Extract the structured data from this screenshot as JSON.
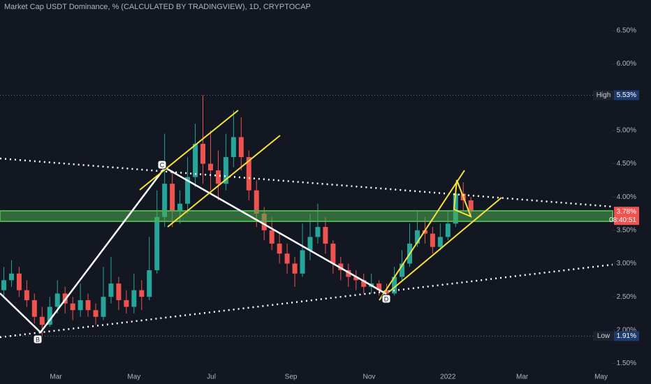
{
  "chart_data": {
    "type": "candlestick",
    "title": "Market Cap USDT Dominance, % (CALCULATED BY TRADINGVIEW), 1D, CRYPTOCAP",
    "xlim": [
      -0.5,
      79.5
    ],
    "xticks": [
      {
        "value": 6.8,
        "label": "Mar"
      },
      {
        "value": 17.0,
        "label": "May"
      },
      {
        "value": 27.1,
        "label": "Jul"
      },
      {
        "value": 37.5,
        "label": "Sep"
      },
      {
        "value": 47.7,
        "label": "Nov"
      },
      {
        "value": 58.0,
        "label": "2022"
      },
      {
        "value": 67.7,
        "label": "Mar"
      },
      {
        "value": 78.0,
        "label": "May"
      }
    ],
    "ylim": [
      1.4,
      6.73
    ],
    "yticks": [
      {
        "value": 1.5,
        "label": "1.50%"
      },
      {
        "value": 2.0,
        "label": "2.00%"
      },
      {
        "value": 2.5,
        "label": "2.50%"
      },
      {
        "value": 3.0,
        "label": "3.00%"
      },
      {
        "value": 3.5,
        "label": "3.50%"
      },
      {
        "value": 4.0,
        "label": "4.00%"
      },
      {
        "value": 4.5,
        "label": "4.50%"
      },
      {
        "value": 5.0,
        "label": "5.00%"
      },
      {
        "value": 6.0,
        "label": "6.00%"
      },
      {
        "value": 6.5,
        "label": "6.50%"
      }
    ],
    "up_color": "#26a69a",
    "down_color": "#ef5350",
    "open": [
      2.6,
      2.75,
      2.85,
      2.6,
      2.45,
      2.2,
      2.08,
      2.35,
      2.55,
      2.4,
      2.3,
      2.45,
      2.3,
      2.2,
      2.5,
      2.7,
      2.45,
      2.35,
      2.6,
      2.5,
      2.9,
      3.7,
      4.2,
      3.8,
      3.9,
      4.3,
      4.8,
      4.5,
      4.4,
      4.2,
      4.6,
      4.9,
      4.6,
      4.1,
      3.75,
      3.5,
      3.3,
      3.15,
      3.0,
      2.85,
      3.2,
      3.4,
      3.55,
      3.3,
      3.0,
      2.9,
      2.8,
      2.75,
      2.65,
      2.7,
      2.6,
      2.55,
      2.8,
      3.0,
      3.3,
      3.5,
      3.45,
      3.25,
      3.4,
      3.6,
      4.05,
      3.95
    ],
    "high": [
      2.95,
      3.05,
      2.95,
      2.75,
      2.55,
      2.35,
      2.5,
      2.75,
      2.65,
      2.5,
      2.7,
      2.55,
      2.4,
      2.95,
      3.1,
      2.8,
      2.6,
      2.85,
      2.75,
      3.4,
      4.1,
      4.95,
      4.4,
      4.1,
      4.6,
      5.1,
      5.53,
      5.0,
      4.7,
      4.95,
      5.3,
      5.2,
      4.7,
      4.25,
      3.85,
      3.7,
      3.45,
      3.3,
      3.1,
      3.6,
      3.75,
      3.9,
      3.7,
      3.35,
      3.1,
      3.0,
      2.9,
      2.85,
      2.85,
      2.75,
      2.7,
      2.95,
      3.2,
      3.6,
      3.8,
      3.7,
      3.55,
      3.6,
      3.8,
      4.15,
      4.22,
      4.0
    ],
    "low": [
      2.5,
      2.65,
      2.5,
      2.35,
      2.1,
      1.91,
      2.05,
      2.25,
      2.25,
      2.15,
      2.2,
      2.2,
      2.08,
      2.15,
      2.4,
      2.3,
      2.25,
      2.25,
      2.3,
      2.45,
      2.85,
      3.55,
      3.55,
      3.6,
      3.75,
      4.15,
      4.2,
      4.1,
      3.95,
      4.1,
      4.45,
      4.4,
      3.95,
      3.55,
      3.35,
      3.2,
      3.0,
      2.85,
      2.65,
      2.8,
      3.05,
      3.3,
      3.15,
      2.85,
      2.75,
      2.65,
      2.6,
      2.55,
      2.55,
      2.52,
      2.48,
      2.52,
      2.75,
      2.95,
      3.25,
      3.3,
      3.15,
      3.2,
      3.35,
      3.55,
      3.8,
      3.7
    ],
    "close": [
      2.75,
      2.85,
      2.6,
      2.45,
      2.2,
      2.08,
      2.35,
      2.55,
      2.4,
      2.3,
      2.45,
      2.3,
      2.2,
      2.5,
      2.7,
      2.45,
      2.35,
      2.6,
      2.5,
      2.9,
      3.7,
      4.2,
      3.8,
      3.9,
      4.3,
      4.8,
      4.5,
      4.4,
      4.2,
      4.6,
      4.9,
      4.6,
      4.1,
      3.75,
      3.5,
      3.3,
      3.15,
      3.0,
      2.85,
      3.2,
      3.4,
      3.55,
      3.3,
      3.0,
      2.9,
      2.8,
      2.75,
      2.65,
      2.7,
      2.6,
      2.55,
      2.8,
      3.0,
      3.3,
      3.5,
      3.45,
      3.25,
      3.4,
      3.6,
      4.05,
      3.95,
      3.78
    ],
    "high_marker": {
      "label": "High",
      "value": 5.53,
      "value_label": "5.53%"
    },
    "low_marker": {
      "label": "Low",
      "value": 1.91,
      "value_label": "1.91%"
    },
    "last_price": {
      "value": 3.78,
      "value_label": "3.78%",
      "countdown": "08:40:51"
    },
    "pivots": [
      "B",
      "C",
      "D"
    ]
  }
}
